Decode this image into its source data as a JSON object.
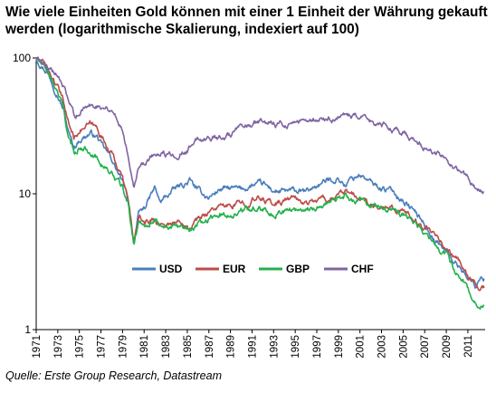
{
  "chart_data": {
    "type": "line",
    "title": "Wie viele Einheiten Gold können mit einer 1 Einheit der Währung gekauft werden (logarithmische Skalierung, indexiert auf 100)",
    "source": "Quelle: Erste Group Research, Datastream",
    "y_scale": "log",
    "ylim": [
      1,
      100
    ],
    "xlim": [
      1971,
      2012.6
    ],
    "y_ticks": [
      "1",
      "10",
      "100"
    ],
    "x_ticks": [
      "1971",
      "1973",
      "1975",
      "1977",
      "1979",
      "1981",
      "1983",
      "1985",
      "1987",
      "1989",
      "1991",
      "1993",
      "1995",
      "1997",
      "1999",
      "2001",
      "2003",
      "2005",
      "2007",
      "2009",
      "2011"
    ],
    "x_tick_values": [
      1971,
      1973,
      1975,
      1977,
      1979,
      1981,
      1983,
      1985,
      1987,
      1989,
      1991,
      1993,
      1995,
      1997,
      1999,
      2001,
      2003,
      2005,
      2007,
      2009,
      2011
    ],
    "grid": false,
    "legend_position": "bottom-center",
    "series": [
      {
        "name": "USD",
        "color": "#4a7ebb",
        "x": [
          1971,
          1972,
          1973,
          1973.6,
          1974,
          1974.5,
          1975,
          1976,
          1976.7,
          1977,
          1978,
          1979,
          1979.5,
          1980.05,
          1980.5,
          1981,
          1982,
          1982.5,
          1983,
          1984,
          1985,
          1985.2,
          1986,
          1987,
          1988,
          1989,
          1990,
          1991,
          1992,
          1993,
          1994,
          1995,
          1996,
          1997,
          1998,
          1999,
          1999.7,
          2000,
          2001,
          2002,
          2003,
          2004,
          2005,
          2006,
          2007,
          2008,
          2009,
          2010,
          2011,
          2011.7,
          2012,
          2012.5
        ],
        "y": [
          100,
          80,
          55,
          40,
          28,
          22,
          25,
          28,
          26,
          23,
          18,
          12,
          9,
          4.5,
          7,
          7.8,
          11,
          8.5,
          9.5,
          11,
          12,
          12.5,
          10.5,
          9.4,
          10.8,
          10.9,
          10.7,
          11.5,
          11.7,
          10.5,
          10.3,
          10.4,
          10.2,
          11.5,
          12.5,
          13,
          11.5,
          12.5,
          14,
          12,
          11,
          10.5,
          9,
          7.5,
          6,
          4.5,
          3.8,
          3,
          2.5,
          2.1,
          2.3,
          2.4
        ]
      },
      {
        "name": "EUR",
        "color": "#be4b48",
        "x": [
          1971,
          1972,
          1973,
          1973.6,
          1974,
          1974.5,
          1975,
          1976,
          1976.7,
          1977,
          1978,
          1979,
          1979.5,
          1980.05,
          1980.5,
          1981,
          1982,
          1982.5,
          1983,
          1984,
          1985,
          1985.2,
          1986,
          1987,
          1988,
          1989,
          1990,
          1991,
          1992,
          1993,
          1994,
          1995,
          1996,
          1997,
          1998,
          1999,
          1999.7,
          2000,
          2001,
          2002,
          2003,
          2004,
          2005,
          2006,
          2007,
          2008,
          2009,
          2010,
          2011,
          2011.7,
          2012,
          2012.5
        ],
        "y": [
          100,
          85,
          60,
          45,
          33,
          26,
          30,
          32,
          30,
          27,
          20,
          13,
          9,
          4.5,
          6.5,
          6.2,
          6.5,
          6,
          6,
          6.2,
          6.2,
          5.8,
          6.5,
          7.5,
          8,
          8,
          8.5,
          9,
          9.2,
          8.5,
          9,
          9.3,
          8.5,
          9,
          9.2,
          9.5,
          10,
          10,
          9,
          8.5,
          8.2,
          8,
          7.5,
          6.5,
          5.5,
          4.7,
          4,
          3.3,
          2.5,
          2.2,
          1.9,
          2
        ]
      },
      {
        "name": "GBP",
        "color": "#22b14c",
        "x": [
          1971,
          1972,
          1973,
          1973.6,
          1974,
          1974.5,
          1975,
          1976,
          1976.7,
          1977,
          1978,
          1979,
          1979.5,
          1980.05,
          1980.5,
          1981,
          1982,
          1982.5,
          1983,
          1984,
          1985,
          1985.2,
          1986,
          1987,
          1988,
          1989,
          1990,
          1991,
          1992,
          1993,
          1994,
          1995,
          1996,
          1997,
          1998,
          1999,
          1999.7,
          2000,
          2001,
          2002,
          2003,
          2004,
          2005,
          2006,
          2007,
          2008,
          2009,
          2010,
          2011,
          2011.7,
          2012,
          2012.5
        ],
        "y": [
          100,
          80,
          55,
          40,
          25,
          20,
          22,
          21,
          18,
          17,
          14,
          11,
          8.5,
          4.2,
          6.2,
          6,
          6.5,
          5.8,
          6,
          5.5,
          5.8,
          5.5,
          6.2,
          6.5,
          7,
          7,
          7.5,
          7.8,
          8,
          7.2,
          7.5,
          7.6,
          7.8,
          8,
          8.5,
          9,
          9.5,
          9.2,
          8.8,
          8.2,
          8,
          7.5,
          7,
          6.2,
          5,
          4.2,
          3.5,
          2.6,
          2,
          1.6,
          1.45,
          1.55
        ]
      },
      {
        "name": "CHF",
        "color": "#8064a2",
        "x": [
          1971,
          1972,
          1973,
          1973.6,
          1974,
          1974.5,
          1975,
          1976,
          1976.7,
          1977,
          1978,
          1979,
          1979.5,
          1980.05,
          1980.5,
          1981,
          1982,
          1982.5,
          1983,
          1984,
          1985,
          1985.2,
          1986,
          1987,
          1988,
          1989,
          1990,
          1991,
          1992,
          1993,
          1994,
          1995,
          1996,
          1997,
          1998,
          1999,
          1999.7,
          2000,
          2001,
          2002,
          2003,
          2004,
          2005,
          2006,
          2007,
          2008,
          2009,
          2010,
          2011,
          2011.7,
          2012,
          2012.5
        ],
        "y": [
          100,
          90,
          72,
          60,
          45,
          38,
          40,
          45,
          45,
          45,
          42,
          30,
          20,
          12,
          16,
          17,
          20,
          19,
          19,
          20,
          21,
          22,
          25,
          26,
          26,
          27,
          30,
          32,
          34,
          33,
          32,
          35,
          33,
          36,
          35,
          37,
          36,
          37,
          36,
          34,
          32,
          30,
          28,
          25,
          22,
          20,
          18,
          15,
          13,
          11,
          10.5,
          10.8
        ]
      }
    ]
  },
  "legend": {
    "usd": "USD",
    "eur": "EUR",
    "gbp": "GBP",
    "chf": "CHF"
  }
}
